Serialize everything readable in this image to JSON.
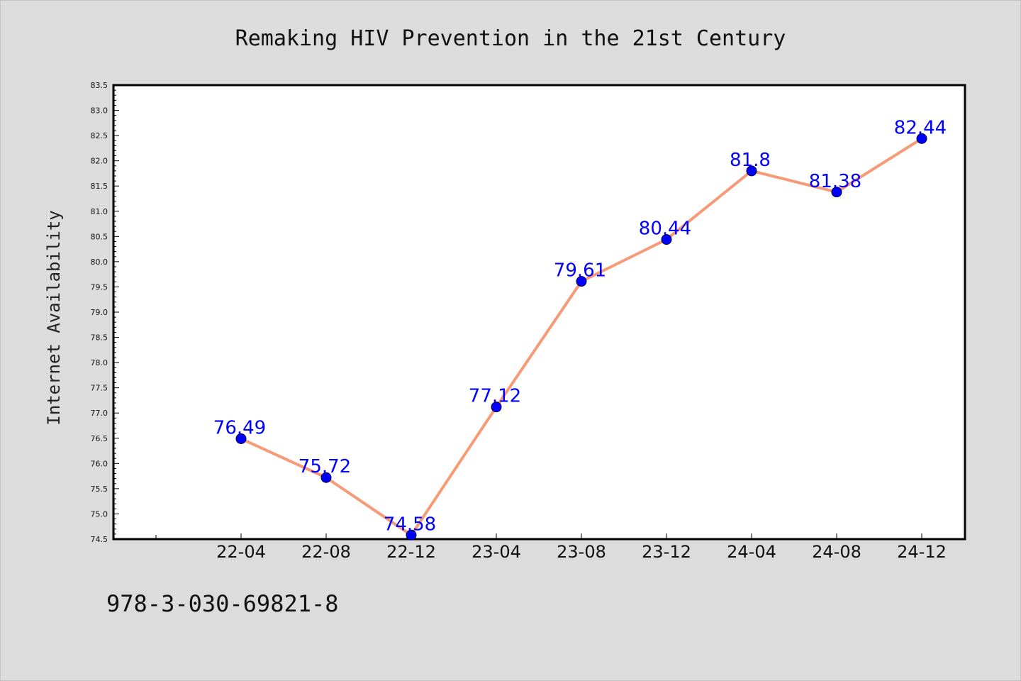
{
  "chart_data": {
    "type": "line",
    "title": "Remaking HIV Prevention in the 21st Century",
    "xlabel": "",
    "ylabel": "Internet Availability",
    "categories": [
      "22-04",
      "22-08",
      "22-12",
      "23-04",
      "23-08",
      "23-12",
      "24-04",
      "24-08",
      "24-12"
    ],
    "values": [
      76.49,
      75.72,
      74.58,
      77.12,
      79.61,
      80.44,
      81.8,
      81.38,
      82.44
    ],
    "data_labels": [
      "76.49",
      "75.72",
      "74.58",
      "77.12",
      "79.61",
      "80.44",
      "81.8",
      "81.38",
      "82.44"
    ],
    "ylim": [
      74.5,
      83.5
    ],
    "yticks": [
      "74.5",
      "75.0",
      "75.5",
      "76.0",
      "76.5",
      "77.0",
      "77.5",
      "78.0",
      "78.5",
      "79.0",
      "79.5",
      "80.0",
      "80.5",
      "81.0",
      "81.5",
      "82.0",
      "82.5",
      "83.0",
      "83.5"
    ],
    "grid": false,
    "legend": "none",
    "line_color": "#f79a78",
    "marker_color": "#0000ff",
    "label_color": "#0000ff"
  },
  "footer": {
    "isbn": "978-3-030-69821-8"
  }
}
